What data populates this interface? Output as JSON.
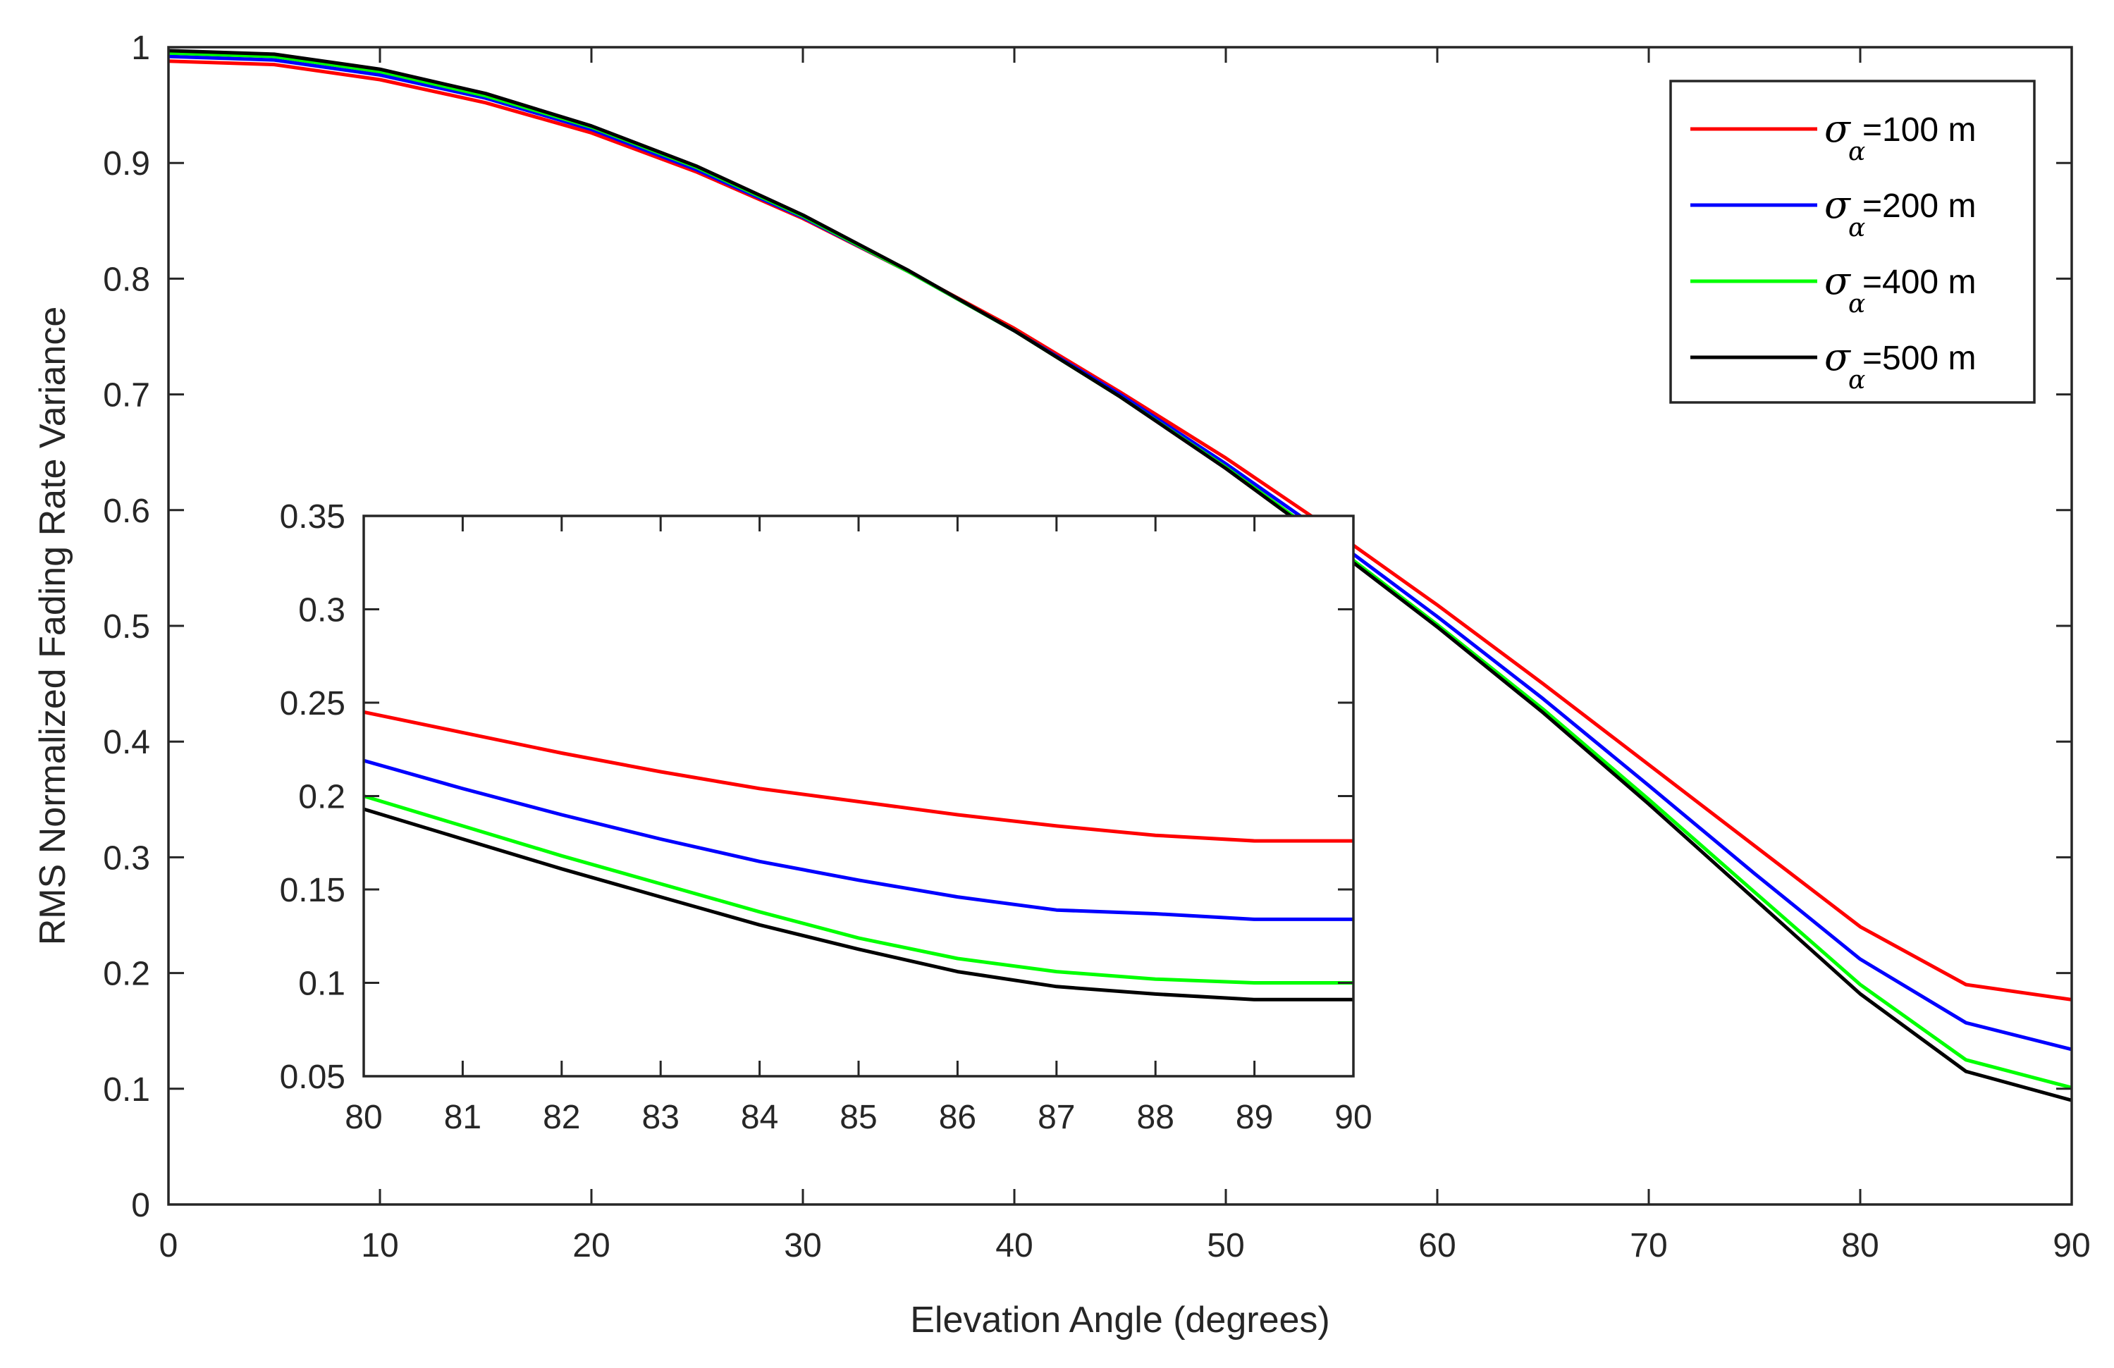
{
  "chart_data": [
    {
      "id": "main",
      "type": "line",
      "title": "",
      "xlabel": "Elevation Angle (degrees)",
      "ylabel": "RMS Normalized Fading Rate Variance",
      "xlim": [
        0,
        90
      ],
      "ylim": [
        0,
        1
      ],
      "xticks": [
        0,
        10,
        20,
        30,
        40,
        50,
        60,
        70,
        80,
        90
      ],
      "xtick_labels": [
        "0",
        "10",
        "20",
        "30",
        "40",
        "50",
        "60",
        "70",
        "80",
        "90"
      ],
      "yticks": [
        0,
        0.1,
        0.2,
        0.3,
        0.4,
        0.5,
        0.6,
        0.7,
        0.8,
        0.9,
        1
      ],
      "ytick_labels": [
        "0",
        "0.1",
        "0.2",
        "0.3",
        "0.4",
        "0.5",
        "0.6",
        "0.7",
        "0.8",
        "0.9",
        "1"
      ],
      "grid": false,
      "legend_position": "top-right",
      "x": [
        0,
        5,
        10,
        15,
        20,
        25,
        30,
        35,
        40,
        45,
        50,
        55,
        60,
        65,
        70,
        75,
        80,
        85,
        90
      ],
      "series": [
        {
          "name": "=100 m",
          "symbol": "σ",
          "subscript": "α",
          "color": "#ff0000",
          "values": [
            0.988,
            0.985,
            0.972,
            0.952,
            0.926,
            0.892,
            0.852,
            0.806,
            0.757,
            0.702,
            0.645,
            0.583,
            0.518,
            0.45,
            0.38,
            0.31,
            0.24,
            0.19,
            0.177
          ]
        },
        {
          "name": "=200 m",
          "symbol": "σ",
          "subscript": "α",
          "color": "#0000ff",
          "values": [
            0.992,
            0.989,
            0.976,
            0.956,
            0.929,
            0.894,
            0.853,
            0.806,
            0.755,
            0.7,
            0.64,
            0.576,
            0.508,
            0.437,
            0.362,
            0.286,
            0.212,
            0.157,
            0.134
          ]
        },
        {
          "name": "=400 m",
          "symbol": "σ",
          "subscript": "α",
          "color": "#00ff00",
          "values": [
            0.995,
            0.992,
            0.979,
            0.958,
            0.931,
            0.896,
            0.854,
            0.806,
            0.755,
            0.698,
            0.637,
            0.571,
            0.501,
            0.428,
            0.35,
            0.27,
            0.19,
            0.125,
            0.101
          ]
        },
        {
          "name": "=500 m",
          "symbol": "σ",
          "subscript": "α",
          "color": "#000000",
          "values": [
            0.997,
            0.994,
            0.981,
            0.96,
            0.932,
            0.897,
            0.855,
            0.807,
            0.755,
            0.698,
            0.636,
            0.569,
            0.499,
            0.425,
            0.346,
            0.264,
            0.182,
            0.115,
            0.09
          ]
        }
      ]
    },
    {
      "id": "inset",
      "type": "line",
      "title": "",
      "xlabel": "",
      "ylabel": "",
      "xlim": [
        80,
        90
      ],
      "ylim": [
        0.05,
        0.35
      ],
      "xticks": [
        80,
        81,
        82,
        83,
        84,
        85,
        86,
        87,
        88,
        89,
        90
      ],
      "xtick_labels": [
        "80",
        "81",
        "82",
        "83",
        "84",
        "85",
        "86",
        "87",
        "88",
        "89",
        "90"
      ],
      "yticks": [
        0.05,
        0.1,
        0.15,
        0.2,
        0.25,
        0.3,
        0.35
      ],
      "ytick_labels": [
        "0.05",
        "0.1",
        "0.15",
        "0.2",
        "0.25",
        "0.3",
        "0.35"
      ],
      "grid": false,
      "x": [
        80,
        81,
        82,
        83,
        84,
        85,
        86,
        87,
        88,
        89,
        90
      ],
      "series": [
        {
          "name": "σα=100 m",
          "color": "#ff0000",
          "values": [
            0.245,
            0.234,
            0.223,
            0.213,
            0.204,
            0.197,
            0.19,
            0.184,
            0.179,
            0.176,
            0.176
          ]
        },
        {
          "name": "σα=200 m",
          "color": "#0000ff",
          "values": [
            0.219,
            0.204,
            0.19,
            0.177,
            0.165,
            0.155,
            0.146,
            0.139,
            0.137,
            0.134,
            0.134
          ]
        },
        {
          "name": "σα=400 m",
          "color": "#00ff00",
          "values": [
            0.2,
            0.184,
            0.168,
            0.153,
            0.138,
            0.124,
            0.113,
            0.106,
            0.102,
            0.1,
            0.1
          ]
        },
        {
          "name": "σα=500 m",
          "color": "#000000",
          "values": [
            0.193,
            0.177,
            0.161,
            0.146,
            0.131,
            0.118,
            0.106,
            0.098,
            0.094,
            0.091,
            0.091
          ]
        }
      ]
    }
  ]
}
